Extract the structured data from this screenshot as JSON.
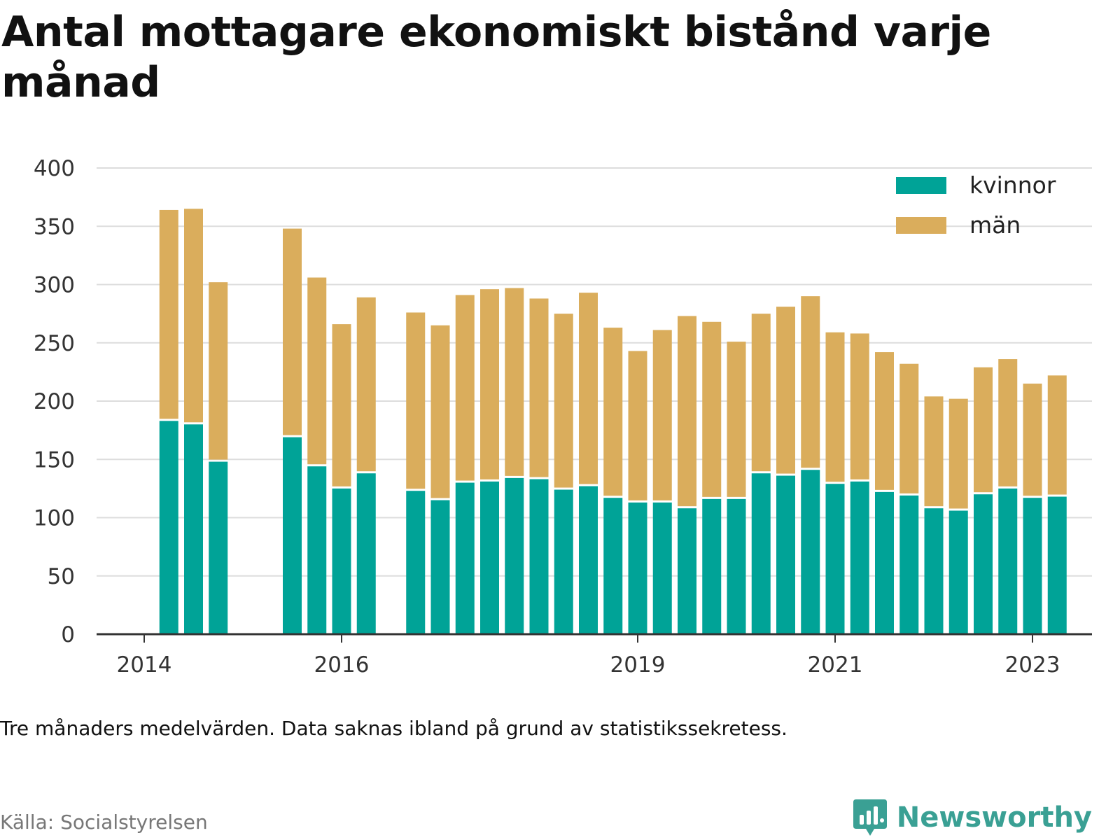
{
  "title": "Antal mottagare ekonomiskt bistånd varje månad",
  "note": "Tre månaders medelvärden. Data saknas ibland på grund av statistikssekretess.",
  "source": "Källa: Socialstyrelsen",
  "brand": "Newsworthy",
  "colors": {
    "kvinnor": "#00a397",
    "man": "#daad5c",
    "grid": "#dddddd",
    "axis": "#333333",
    "brand": "#3aa094"
  },
  "chart_data": {
    "type": "bar",
    "stacked": true,
    "ylim": [
      0,
      400
    ],
    "yticks": [
      0,
      50,
      100,
      150,
      200,
      250,
      300,
      350,
      400
    ],
    "xtick_labels": [
      "2014",
      "2016",
      "2019",
      "2021",
      "2023"
    ],
    "xtick_positions": [
      "2014-01",
      "2016-01",
      "2019-01",
      "2021-01",
      "2023-01"
    ],
    "legend": {
      "position": "top-right",
      "entries": [
        "kvinnor",
        "män"
      ]
    },
    "grid": true,
    "categories": [
      "2014-04",
      "2014-07",
      "2014-10",
      "2015-07",
      "2015-10",
      "2016-01",
      "2016-04",
      "2016-10",
      "2017-01",
      "2017-04",
      "2017-07",
      "2017-10",
      "2018-01",
      "2018-04",
      "2018-07",
      "2018-10",
      "2019-01",
      "2019-04",
      "2019-07",
      "2019-10",
      "2020-01",
      "2020-04",
      "2020-07",
      "2020-10",
      "2021-01",
      "2021-04",
      "2021-07",
      "2021-10",
      "2022-01",
      "2022-04",
      "2022-07",
      "2022-10",
      "2023-01",
      "2023-04"
    ],
    "series": [
      {
        "name": "kvinnor",
        "values": [
          183,
          180,
          148,
          169,
          144,
          125,
          138,
          123,
          115,
          130,
          131,
          134,
          133,
          124,
          127,
          117,
          113,
          113,
          108,
          116,
          116,
          138,
          136,
          141,
          129,
          131,
          122,
          119,
          108,
          106,
          120,
          125,
          117,
          118
        ]
      },
      {
        "name": "män",
        "values": [
          181,
          185,
          154,
          179,
          162,
          141,
          151,
          153,
          150,
          161,
          165,
          163,
          155,
          151,
          166,
          146,
          130,
          148,
          165,
          152,
          135,
          137,
          145,
          149,
          130,
          127,
          120,
          113,
          96,
          96,
          109,
          111,
          98,
          104
        ]
      }
    ]
  }
}
